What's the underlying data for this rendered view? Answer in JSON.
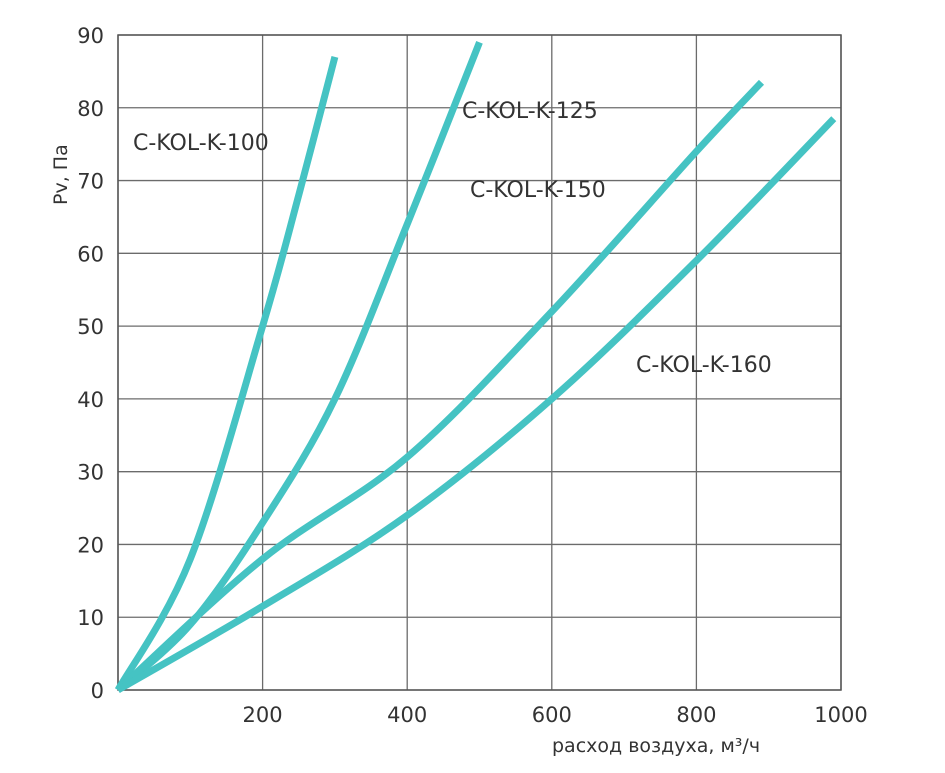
{
  "chart_data": {
    "type": "line",
    "title": "",
    "xlabel": "расход воздуха, м³/ч",
    "ylabel": "Pv, Па",
    "xlim": [
      0,
      1000
    ],
    "ylim": [
      0,
      90
    ],
    "xticks": [
      "200",
      "400",
      "600",
      "800",
      "1000"
    ],
    "yticks": [
      "0",
      "10",
      "20",
      "30",
      "40",
      "50",
      "60",
      "70",
      "80",
      "90"
    ],
    "grid": true,
    "line_color": "#45C3C3",
    "series": [
      {
        "name": "C-KOL-K-100",
        "x": [
          0,
          100,
          200,
          250,
          300
        ],
        "y": [
          0,
          18,
          50,
          68,
          87
        ]
      },
      {
        "name": "C-KOL-K-125",
        "x": [
          0,
          100,
          200,
          300,
          400,
          500
        ],
        "y": [
          0,
          9,
          23,
          40,
          64,
          89
        ]
      },
      {
        "name": "C-KOL-K-150",
        "x": [
          0,
          200,
          400,
          600,
          800,
          890
        ],
        "y": [
          0,
          18,
          32,
          52,
          74,
          83.5
        ]
      },
      {
        "name": "C-KOL-K-160",
        "x": [
          0,
          200,
          400,
          600,
          800,
          990
        ],
        "y": [
          0,
          11.5,
          24,
          40,
          59,
          78.5
        ]
      }
    ]
  }
}
